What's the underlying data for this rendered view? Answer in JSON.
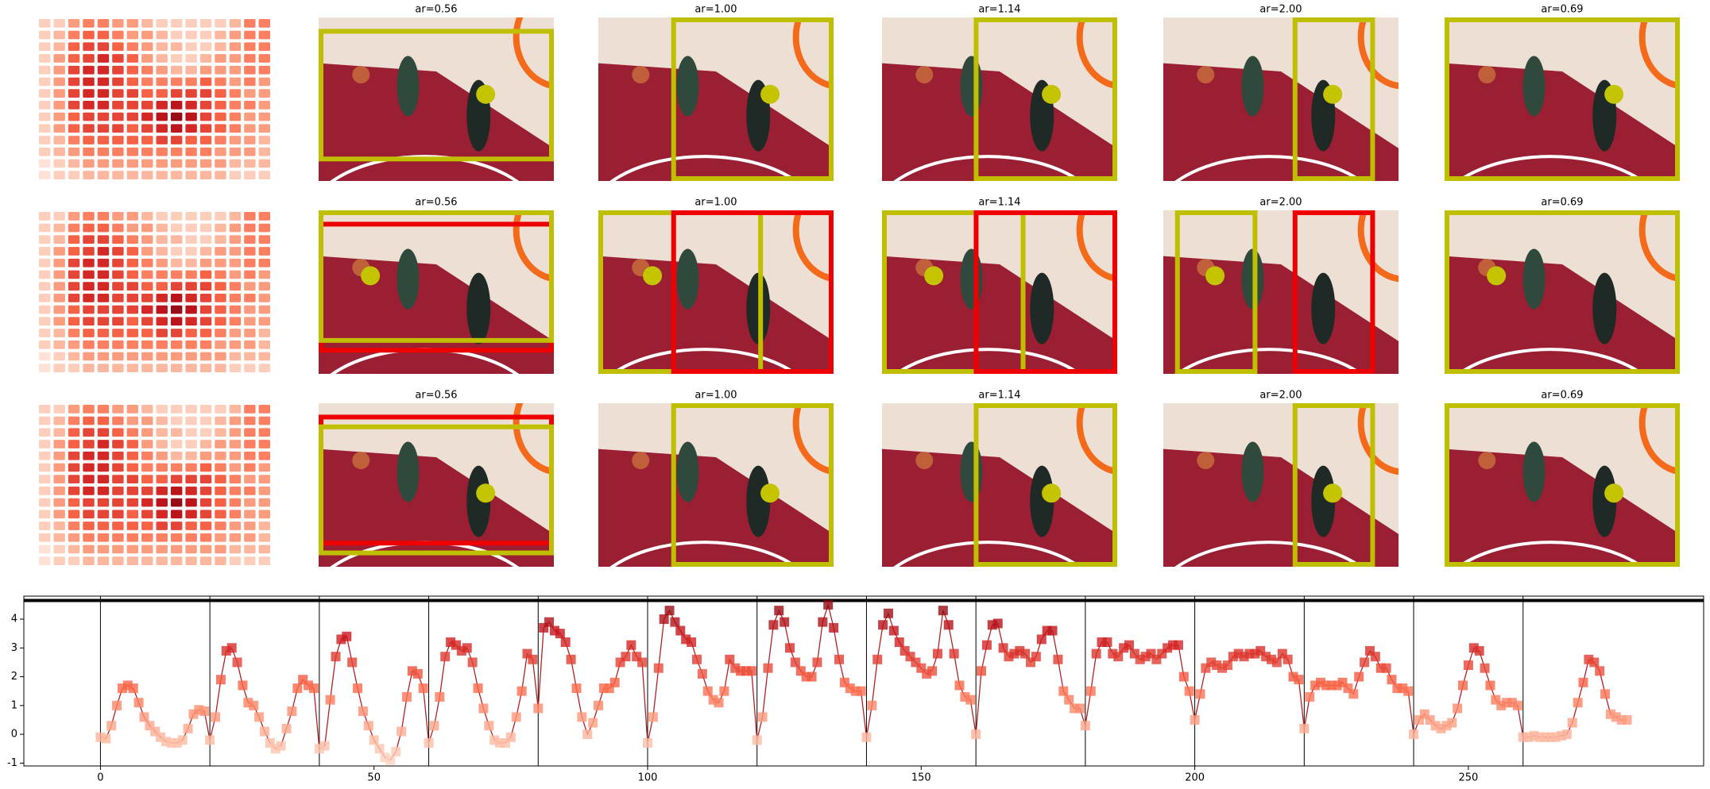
{
  "heatmap": [
    [
      1,
      1,
      3,
      4,
      4,
      3,
      3,
      2,
      1,
      1,
      1,
      1,
      1,
      2,
      4,
      4
    ],
    [
      1,
      2,
      4,
      5,
      5,
      4,
      3,
      3,
      2,
      1,
      1,
      1,
      2,
      3,
      4,
      4
    ],
    [
      1,
      2,
      5,
      6,
      6,
      5,
      4,
      3,
      2,
      2,
      1,
      1,
      2,
      3,
      4,
      4
    ],
    [
      1,
      3,
      5,
      6,
      7,
      6,
      5,
      3,
      2,
      1,
      1,
      2,
      3,
      3,
      4,
      4
    ],
    [
      1,
      3,
      6,
      7,
      7,
      6,
      5,
      4,
      3,
      2,
      2,
      3,
      3,
      3,
      4,
      4
    ],
    [
      1,
      3,
      6,
      7,
      7,
      6,
      5,
      4,
      4,
      4,
      4,
      5,
      4,
      3,
      4,
      3
    ],
    [
      1,
      3,
      6,
      7,
      7,
      6,
      6,
      5,
      5,
      6,
      6,
      6,
      5,
      4,
      3,
      3
    ],
    [
      1,
      3,
      6,
      7,
      7,
      6,
      6,
      6,
      7,
      8,
      7,
      6,
      5,
      4,
      4,
      3
    ],
    [
      1,
      3,
      5,
      6,
      6,
      6,
      6,
      7,
      8,
      9,
      8,
      6,
      5,
      4,
      3,
      3
    ],
    [
      1,
      3,
      5,
      6,
      6,
      6,
      5,
      6,
      7,
      8,
      7,
      6,
      5,
      4,
      3,
      3
    ],
    [
      1,
      2,
      4,
      5,
      5,
      5,
      5,
      5,
      6,
      6,
      5,
      5,
      4,
      3,
      3,
      2
    ],
    [
      1,
      2,
      3,
      4,
      4,
      4,
      4,
      4,
      4,
      4,
      4,
      4,
      3,
      3,
      3,
      2
    ],
    [
      0,
      1,
      2,
      3,
      3,
      3,
      3,
      3,
      3,
      3,
      3,
      3,
      3,
      2,
      2,
      2
    ],
    [
      0,
      1,
      1,
      2,
      2,
      2,
      2,
      2,
      2,
      2,
      2,
      2,
      2,
      1,
      1,
      1
    ]
  ],
  "image_rows": [
    {
      "titles": [
        "ar=0.56",
        "ar=1.00",
        "ar=1.14",
        "ar=2.00",
        "ar=0.69"
      ]
    },
    {
      "titles": [
        "ar=0.56",
        "ar=1.00",
        "ar=1.14",
        "ar=2.00",
        "ar=0.69"
      ]
    },
    {
      "titles": [
        "ar=0.56",
        "ar=1.00",
        "ar=1.14",
        "ar=2.00",
        "ar=0.69"
      ]
    }
  ],
  "chart_data": {
    "type": "line",
    "x": [
      0,
      1,
      2,
      3,
      4,
      5,
      6,
      7,
      8,
      9,
      10,
      11,
      12,
      13,
      14,
      15,
      16,
      17,
      18,
      19,
      20,
      21,
      22,
      23,
      24,
      25,
      26,
      27,
      28,
      29,
      30,
      31,
      32,
      33,
      34,
      35,
      36,
      37,
      38,
      39,
      40,
      41,
      42,
      43,
      44,
      45,
      46,
      47,
      48,
      49,
      50,
      51,
      52,
      53,
      54,
      55,
      56,
      57,
      58,
      59,
      60,
      61,
      62,
      63,
      64,
      65,
      66,
      67,
      68,
      69,
      70,
      71,
      72,
      73,
      74,
      75,
      76,
      77,
      78,
      79,
      80,
      81,
      82,
      83,
      84,
      85,
      86,
      87,
      88,
      89,
      90,
      91,
      92,
      93,
      94,
      95,
      96,
      97,
      98,
      99,
      100,
      101,
      102,
      103,
      104,
      105,
      106,
      107,
      108,
      109,
      110,
      111,
      112,
      113,
      114,
      115,
      116,
      117,
      118,
      119,
      120,
      121,
      122,
      123,
      124,
      125,
      126,
      127,
      128,
      129,
      130,
      131,
      132,
      133,
      134,
      135,
      136,
      137,
      138,
      139,
      140,
      141,
      142,
      143,
      144,
      145,
      146,
      147,
      148,
      149,
      150,
      151,
      152,
      153,
      154,
      155,
      156,
      157,
      158,
      159,
      160,
      161,
      162,
      163,
      164,
      165,
      166,
      167,
      168,
      169,
      170,
      171,
      172,
      173,
      174,
      175,
      176,
      177,
      178,
      179,
      180,
      181,
      182,
      183,
      184,
      185,
      186,
      187,
      188,
      189,
      190,
      191,
      192,
      193,
      194,
      195,
      196,
      197,
      198,
      199,
      200,
      201,
      202,
      203,
      204,
      205,
      206,
      207,
      208,
      209,
      210,
      211,
      212,
      213,
      214,
      215,
      216,
      217,
      218,
      219,
      220,
      221,
      222,
      223,
      224,
      225,
      226,
      227,
      228,
      229,
      230,
      231,
      232,
      233,
      234,
      235,
      236,
      237,
      238,
      239,
      240,
      241,
      242,
      243,
      244,
      245,
      246,
      247,
      248,
      249,
      250,
      251,
      252,
      253,
      254,
      255,
      256,
      257,
      258,
      259,
      260,
      261,
      262,
      263,
      264,
      265,
      266,
      267,
      268,
      269,
      270,
      271,
      272,
      273,
      274,
      275,
      276,
      277,
      278,
      279
    ],
    "series": [
      {
        "color": "#b22222",
        "marker_cmap": "Reds",
        "values": [
          -0.1,
          -0.15,
          0.3,
          1.0,
          1.6,
          1.7,
          1.6,
          1.1,
          0.6,
          0.3,
          0.1,
          -0.1,
          -0.25,
          -0.3,
          -0.3,
          -0.2,
          0.2,
          0.7,
          0.85,
          0.8,
          -0.2,
          0.6,
          1.9,
          2.9,
          3.0,
          2.5,
          1.7,
          1.1,
          1.0,
          0.6,
          0.1,
          -0.3,
          -0.5,
          -0.4,
          0.2,
          0.8,
          1.6,
          1.9,
          1.7,
          1.6,
          -0.5,
          -0.4,
          1.2,
          2.7,
          3.3,
          3.4,
          2.5,
          1.6,
          0.8,
          0.3,
          -0.2,
          -0.5,
          -0.8,
          -0.9,
          -0.6,
          0.1,
          1.3,
          2.2,
          2.1,
          1.6,
          -0.3,
          0.3,
          1.3,
          2.7,
          3.2,
          3.1,
          2.9,
          3.0,
          2.5,
          1.6,
          0.9,
          0.3,
          -0.2,
          -0.3,
          -0.3,
          -0.1,
          0.6,
          1.5,
          2.8,
          2.6,
          0.9,
          3.7,
          3.9,
          3.6,
          3.5,
          3.2,
          2.6,
          1.6,
          0.6,
          0.0,
          0.4,
          1.0,
          1.6,
          1.6,
          1.8,
          2.5,
          2.7,
          3.1,
          2.7,
          2.5,
          -0.3,
          0.6,
          2.3,
          4.0,
          4.3,
          3.9,
          3.6,
          3.3,
          3.2,
          2.6,
          2.1,
          1.5,
          1.2,
          1.1,
          1.5,
          2.6,
          2.3,
          2.2,
          2.2,
          2.2,
          -0.2,
          0.6,
          2.3,
          3.8,
          4.3,
          3.9,
          3.0,
          2.5,
          2.2,
          2.0,
          2.0,
          2.5,
          3.9,
          4.5,
          3.7,
          2.6,
          1.8,
          1.6,
          1.5,
          1.5,
          -0.1,
          1.0,
          2.6,
          3.8,
          4.2,
          3.6,
          3.2,
          2.9,
          2.7,
          2.5,
          2.3,
          2.1,
          2.2,
          2.8,
          4.3,
          3.8,
          2.8,
          1.7,
          1.3,
          1.2,
          0.0,
          2.2,
          3.1,
          3.8,
          3.85,
          3.0,
          2.7,
          2.8,
          2.9,
          2.8,
          2.5,
          2.7,
          3.3,
          3.6,
          3.6,
          2.6,
          1.5,
          1.2,
          0.9,
          0.9,
          0.3,
          1.5,
          2.8,
          3.2,
          3.2,
          2.8,
          2.7,
          3.0,
          3.1,
          2.8,
          2.6,
          2.7,
          2.8,
          2.6,
          2.8,
          3.0,
          3.1,
          3.1,
          2.0,
          1.5,
          0.5,
          1.4,
          2.3,
          2.5,
          2.4,
          2.3,
          2.4,
          2.7,
          2.8,
          2.7,
          2.8,
          2.8,
          2.9,
          2.7,
          2.6,
          2.5,
          2.8,
          2.6,
          2.0,
          1.9,
          0.2,
          1.3,
          1.7,
          1.8,
          1.7,
          1.7,
          1.7,
          1.8,
          1.6,
          1.4,
          2.0,
          2.5,
          2.9,
          2.7,
          2.3,
          2.3,
          1.9,
          1.6,
          1.6,
          1.5,
          0.0,
          0.5,
          0.7,
          0.5,
          0.3,
          0.2,
          0.3,
          0.4,
          0.9,
          1.7,
          2.4,
          3.0,
          2.9,
          2.3,
          1.7,
          1.2,
          1.0,
          1.1,
          1.1,
          1.0,
          -0.1,
          -0.1,
          -0.05,
          -0.1,
          -0.1,
          -0.1,
          -0.1,
          -0.05,
          0.0,
          0.4,
          1.1,
          1.8,
          2.6,
          2.5,
          2.2,
          1.4,
          0.7,
          0.6,
          0.5,
          0.5
        ]
      }
    ],
    "xlim": [
      -14,
      293
    ],
    "ylim": [
      -1.1,
      4.8
    ],
    "xticks": [
      0,
      50,
      100,
      150,
      200,
      250
    ],
    "yticks": [
      -1,
      0,
      1,
      2,
      3,
      4
    ],
    "vlines": [
      0,
      20,
      40,
      60,
      80,
      100,
      120,
      140,
      160,
      180,
      200,
      220,
      240,
      260
    ],
    "hline": 4.65
  }
}
